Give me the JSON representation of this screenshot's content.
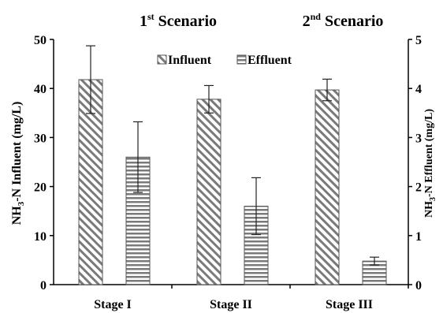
{
  "chart_data": {
    "type": "bar",
    "categories": [
      "Stage I",
      "Stage II",
      "Stage III"
    ],
    "series": [
      {
        "name": "Influent",
        "axis": "left",
        "values": [
          41.8,
          37.8,
          39.7
        ],
        "error": [
          6.9,
          2.8,
          2.2
        ],
        "pattern": "diagonal-hatch"
      },
      {
        "name": "Effluent",
        "axis": "right",
        "values": [
          2.6,
          1.6,
          0.48
        ],
        "error": [
          0.72,
          0.58,
          0.08
        ],
        "pattern": "horizontal-stripes"
      }
    ],
    "y_left": {
      "label_parts": [
        "NH",
        "3",
        "-N Influent (mg/L)"
      ],
      "lim": [
        0,
        50
      ],
      "ticks": [
        "0",
        "10",
        "20",
        "30",
        "40",
        "50"
      ]
    },
    "y_right": {
      "label_parts": [
        "NH",
        "3",
        "-N Effluent (mg/L)"
      ],
      "lim": [
        0,
        5
      ],
      "ticks": [
        "0",
        "1",
        "2",
        "3",
        "4",
        "5"
      ]
    },
    "scenario_labels": [
      {
        "prefix": "1",
        "sup": "st",
        "text": " Scenario"
      },
      {
        "prefix": "2",
        "sup": "nd",
        "text": " Scenario"
      }
    ],
    "legend_position": "top-center",
    "grid": false
  },
  "colors": {
    "bar_outline": "#555555",
    "hatch": "#7a7a7a",
    "axis": "#000000",
    "errorbar": "#222222"
  }
}
